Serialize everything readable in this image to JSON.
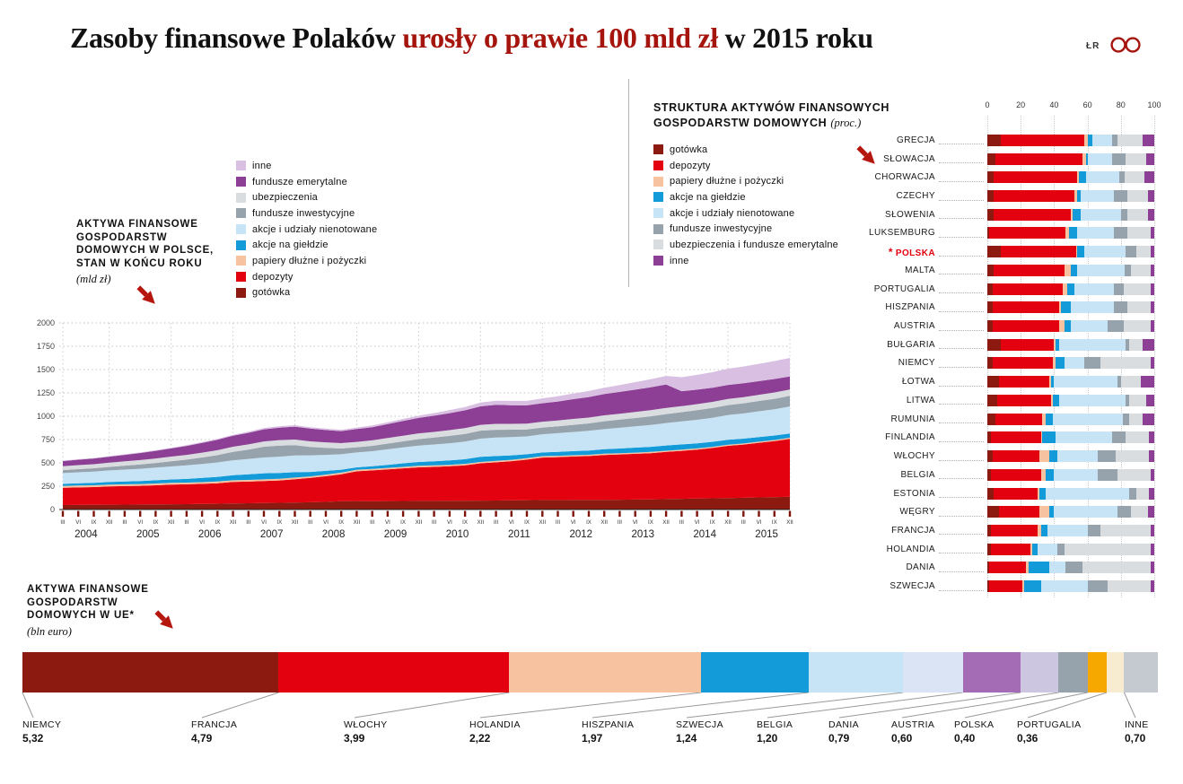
{
  "header": {
    "title_parts": {
      "black1": "Zasoby finansowe Polaków ",
      "red": "urosły o prawie 100 mld zł ",
      "black2": "w 2015 roku"
    },
    "byline": "ŁR"
  },
  "colors": {
    "title_red": "#a5150d",
    "arrow_red": "#b5170e",
    "accent_red": "#e3000f",
    "gotowka": "#8c1a10",
    "depozyty": "#e3000f",
    "papiery": "#f7c2a0",
    "akcje_gielda": "#129bd8",
    "akcje_nienotowane": "#c6e4f6",
    "fundusze_inwestycyjne": "#97a3ac",
    "ubezpieczenia": "#dadde0",
    "fundusze_emerytalne": "#8c3f94",
    "inne_lilac": "#d9bfe2"
  },
  "area_section": {
    "label_lines": [
      "AKTYWA FINANSOWE",
      "GOSPODARSTW",
      "DOMOWYCH W POLSCE,",
      "STAN W KOŃCU ROKU"
    ],
    "unit": "(mld zł)"
  },
  "structure_section": {
    "title_line1": "STRUKTURA AKTYWÓW FINANSOWYCH",
    "title_line2": "GOSPODARSTW DOMOWYCH",
    "unit": "(proc.)"
  },
  "eu_section": {
    "label_lines": [
      "AKTYWA FINANSOWE",
      "GOSPODARSTW",
      "DOMOWYCH W UE*"
    ],
    "unit": "(bln euro)"
  },
  "chart_data": [
    {
      "type": "area",
      "title": "Aktywa finansowe gospodarstw domowych w Polsce, stan w końcu roku",
      "ylabel": "mld zł",
      "xlabel": "",
      "ylim": [
        0,
        2000
      ],
      "yticks": [
        0,
        250,
        500,
        750,
        1000,
        1250,
        1500,
        1750,
        2000
      ],
      "years": [
        2004,
        2005,
        2006,
        2007,
        2008,
        2009,
        2010,
        2011,
        2012,
        2013,
        2014,
        2015
      ],
      "quarter_labels": [
        "III",
        "VI",
        "IX",
        "XII"
      ],
      "grid": true,
      "series": [
        {
          "key": "gotowka",
          "name": "gotówka",
          "color": "#8c1a10",
          "values": [
            48,
            49,
            50,
            52,
            53,
            54,
            55,
            57,
            58,
            60,
            62,
            65,
            67,
            70,
            72,
            75,
            78,
            82,
            88,
            90,
            89,
            90,
            91,
            92,
            92,
            93,
            94,
            95,
            96,
            98,
            100,
            102,
            102,
            103,
            103,
            104,
            105,
            107,
            109,
            112,
            114,
            117,
            120,
            123,
            126,
            130,
            133,
            137
          ]
        },
        {
          "key": "depozyty",
          "name": "depozyty",
          "color": "#e3000f",
          "values": [
            185,
            188,
            190,
            195,
            198,
            200,
            205,
            210,
            212,
            215,
            220,
            230,
            232,
            235,
            240,
            250,
            260,
            275,
            290,
            320,
            330,
            340,
            350,
            360,
            365,
            370,
            380,
            400,
            410,
            420,
            435,
            455,
            460,
            465,
            470,
            480,
            485,
            490,
            495,
            505,
            515,
            525,
            540,
            560,
            570,
            585,
            600,
            620
          ]
        },
        {
          "key": "papiery",
          "name": "papiery dłużne i pożyczki",
          "color": "#f7c2a0",
          "values": [
            20,
            20,
            20,
            20,
            19,
            19,
            19,
            19,
            18,
            18,
            18,
            18,
            18,
            18,
            17,
            17,
            17,
            17,
            17,
            17,
            16,
            16,
            16,
            16,
            16,
            16,
            15,
            15,
            15,
            15,
            15,
            15,
            14,
            14,
            14,
            14,
            14,
            13,
            13,
            13,
            13,
            13,
            12,
            12,
            12,
            12,
            12,
            12
          ]
        },
        {
          "key": "akcje_gielda",
          "name": "akcje na giełdzie",
          "color": "#129bd8",
          "values": [
            22,
            24,
            26,
            28,
            30,
            32,
            34,
            36,
            40,
            45,
            50,
            55,
            60,
            65,
            62,
            58,
            48,
            40,
            32,
            25,
            28,
            33,
            38,
            42,
            44,
            47,
            50,
            54,
            52,
            48,
            42,
            40,
            42,
            44,
            46,
            48,
            50,
            53,
            55,
            57,
            56,
            55,
            54,
            53,
            52,
            50,
            48,
            46
          ]
        },
        {
          "key": "akcje_nienotowane",
          "name": "akcje i udziały nienotowane",
          "color": "#c6e4f6",
          "values": [
            115,
            118,
            120,
            124,
            128,
            132,
            136,
            140,
            145,
            150,
            155,
            160,
            165,
            170,
            175,
            180,
            178,
            172,
            165,
            160,
            162,
            166,
            170,
            175,
            180,
            185,
            190,
            196,
            198,
            195,
            192,
            195,
            200,
            205,
            210,
            216,
            222,
            228,
            234,
            240,
            246,
            252,
            258,
            265,
            270,
            276,
            282,
            290
          ]
        },
        {
          "key": "fundusze_inwestycyjne",
          "name": "fundusze inwestycyjne",
          "color": "#97a3ac",
          "values": [
            32,
            34,
            36,
            38,
            42,
            46,
            50,
            55,
            62,
            70,
            78,
            90,
            100,
            115,
            120,
            110,
            90,
            75,
            62,
            55,
            58,
            62,
            66,
            70,
            74,
            78,
            82,
            85,
            84,
            80,
            74,
            72,
            74,
            77,
            80,
            84,
            87,
            90,
            93,
            96,
            99,
            102,
            104,
            106,
            108,
            110,
            112,
            114
          ]
        },
        {
          "key": "ubezpieczenia",
          "name": "ubezpieczenia",
          "color": "#dadde0",
          "values": [
            42,
            43,
            44,
            45,
            46,
            47,
            48,
            50,
            51,
            52,
            53,
            55,
            56,
            57,
            58,
            60,
            60,
            59,
            58,
            58,
            58,
            59,
            60,
            61,
            61,
            62,
            62,
            63,
            63,
            62,
            62,
            62,
            62,
            63,
            63,
            64,
            64,
            64,
            65,
            65,
            65,
            66,
            66,
            67,
            67,
            67,
            68,
            68
          ]
        },
        {
          "key": "fundusze_emerytalne",
          "name": "fundusze emerytalne",
          "color": "#8c3f94",
          "values": [
            55,
            58,
            61,
            64,
            70,
            76,
            82,
            88,
            96,
            104,
            112,
            118,
            124,
            130,
            134,
            138,
            136,
            132,
            128,
            138,
            142,
            150,
            158,
            166,
            174,
            182,
            190,
            198,
            204,
            200,
            196,
            198,
            204,
            212,
            220,
            228,
            234,
            240,
            246,
            252,
            160,
            155,
            152,
            150,
            148,
            146,
            144,
            140
          ]
        },
        {
          "key": "inne",
          "name": "inne",
          "color": "#d9bfe2",
          "values": [
            5,
            5,
            5,
            6,
            6,
            6,
            7,
            7,
            8,
            8,
            9,
            10,
            12,
            14,
            15,
            16,
            16,
            15,
            15,
            16,
            18,
            20,
            22,
            24,
            28,
            32,
            36,
            40,
            44,
            46,
            48,
            52,
            56,
            60,
            64,
            68,
            74,
            80,
            86,
            92,
            150,
            158,
            166,
            174,
            180,
            186,
            192,
            198
          ]
        }
      ]
    },
    {
      "type": "bar",
      "subtype": "stacked-horizontal",
      "title": "Struktura aktywów finansowych gospodarstw domowych (proc.)",
      "xlim": [
        0,
        100
      ],
      "xticks": [
        0,
        20,
        40,
        60,
        80,
        100
      ],
      "highlight": "POLSKA",
      "highlight_marker": "*",
      "categories": [
        "GRECJA",
        "SŁOWACJA",
        "CHORWACJA",
        "CZECHY",
        "SŁOWENIA",
        "LUKSEMBURG",
        "POLSKA",
        "MALTA",
        "PORTUGALIA",
        "HISZPANIA",
        "AUSTRIA",
        "BUŁGARIA",
        "NIEMCY",
        "ŁOTWA",
        "LITWA",
        "RUMUNIA",
        "FINLANDIA",
        "WŁOCHY",
        "BELGIA",
        "ESTONIA",
        "WĘGRY",
        "FRANCJA",
        "HOLANDIA",
        "DANIA",
        "SZWECJA"
      ],
      "series": [
        {
          "key": "gotowka",
          "name": "gotówka",
          "color": "#8c1a10",
          "values": [
            8,
            5,
            4,
            4,
            4,
            1,
            8,
            4,
            3,
            3,
            3,
            8,
            3,
            7,
            6,
            5,
            2,
            3,
            2,
            4,
            7,
            2,
            2,
            1,
            1
          ]
        },
        {
          "key": "depozyty",
          "name": "depozyty",
          "color": "#e3000f",
          "values": [
            50,
            52,
            50,
            48,
            46,
            46,
            45,
            42,
            42,
            40,
            40,
            32,
            36,
            30,
            32,
            28,
            30,
            28,
            30,
            26,
            24,
            28,
            24,
            22,
            20
          ]
        },
        {
          "key": "papiery",
          "name": "papiery dłużne i pożyczki",
          "color": "#f7c2a0",
          "values": [
            2,
            2,
            1,
            2,
            1,
            2,
            1,
            4,
            3,
            1,
            3,
            1,
            2,
            1,
            1,
            2,
            1,
            6,
            3,
            1,
            6,
            2,
            1,
            2,
            1
          ]
        },
        {
          "key": "akcje_gielda",
          "name": "akcje na giełdzie",
          "color": "#129bd8",
          "values": [
            3,
            1,
            4,
            2,
            5,
            5,
            4,
            4,
            4,
            6,
            4,
            2,
            5,
            2,
            4,
            4,
            8,
            5,
            5,
            4,
            3,
            4,
            3,
            12,
            10
          ]
        },
        {
          "key": "akcje_nienotowane",
          "name": "akcje i udziały nienotowane",
          "color": "#c6e4f6",
          "values": [
            12,
            15,
            20,
            20,
            24,
            22,
            25,
            28,
            24,
            26,
            22,
            40,
            12,
            38,
            40,
            42,
            34,
            24,
            26,
            50,
            38,
            24,
            12,
            10,
            28
          ]
        },
        {
          "key": "fundusze_inwestycyjne",
          "name": "fundusze inwestycyjne",
          "color": "#97a3ac",
          "values": [
            3,
            8,
            3,
            8,
            4,
            8,
            6,
            4,
            6,
            8,
            10,
            2,
            10,
            2,
            2,
            4,
            8,
            11,
            12,
            4,
            8,
            8,
            4,
            10,
            12
          ]
        },
        {
          "key": "ubezp_emerytalne",
          "name": "ubezpieczenia i fundusze emerytalne",
          "color": "#dadde0",
          "values": [
            15,
            12,
            12,
            12,
            12,
            14,
            9,
            12,
            16,
            14,
            16,
            8,
            30,
            12,
            10,
            8,
            14,
            20,
            20,
            8,
            10,
            30,
            52,
            41,
            26
          ]
        },
        {
          "key": "inne",
          "name": "inne",
          "color": "#8c3f94",
          "values": [
            7,
            5,
            6,
            4,
            4,
            2,
            2,
            2,
            2,
            2,
            2,
            7,
            2,
            8,
            5,
            7,
            3,
            3,
            2,
            3,
            4,
            2,
            2,
            2,
            2
          ]
        }
      ]
    },
    {
      "type": "bar",
      "subtype": "proportional-single-bar",
      "title": "Aktywa finansowe gospodarstw domowych w UE",
      "unit": "bln euro",
      "segments": [
        {
          "label": "NIEMCY",
          "value": 5.32,
          "value_display": "5,32",
          "color": "#8c1a10"
        },
        {
          "label": "FRANCJA",
          "value": 4.79,
          "value_display": "4,79",
          "color": "#e3000f"
        },
        {
          "label": "WŁOCHY",
          "value": 3.99,
          "value_display": "3,99",
          "color": "#f7c2a0"
        },
        {
          "label": "HOLANDIA",
          "value": 2.22,
          "value_display": "2,22",
          "color": "#129bd8"
        },
        {
          "label": "HISZPANIA",
          "value": 1.97,
          "value_display": "1,97",
          "color": "#c6e4f6"
        },
        {
          "label": "SZWECJA",
          "value": 1.24,
          "value_display": "1,24",
          "color": "#dbe4f5"
        },
        {
          "label": "BELGIA",
          "value": 1.2,
          "value_display": "1,20",
          "color": "#a46cb5"
        },
        {
          "label": "DANIA",
          "value": 0.79,
          "value_display": "0,79",
          "color": "#cdc6e0"
        },
        {
          "label": "AUSTRIA",
          "value": 0.6,
          "value_display": "0,60",
          "color": "#97a3ac"
        },
        {
          "label": "POLSKA",
          "value": 0.4,
          "value_display": "0,40",
          "color": "#f6a800"
        },
        {
          "label": "PORTUGALIA",
          "value": 0.36,
          "value_display": "0,36",
          "color": "#f7ebd0"
        },
        {
          "label": "INNE",
          "value": 0.7,
          "value_display": "0,70",
          "color": "#c5cad0"
        }
      ]
    }
  ]
}
